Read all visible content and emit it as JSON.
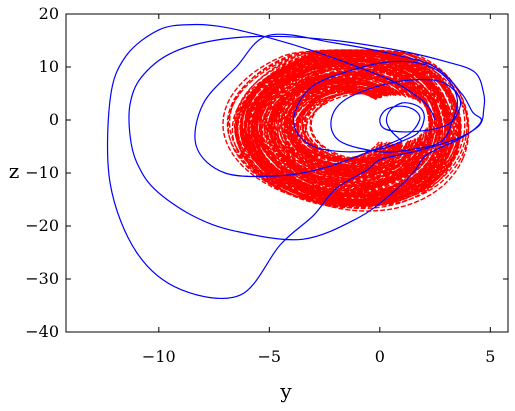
{
  "chart_data": {
    "type": "line",
    "title": "",
    "xlabel": "y",
    "ylabel": "z",
    "xlim": [
      -14.2,
      5.8
    ],
    "ylim": [
      -40,
      20
    ],
    "grid": false,
    "legend": "none",
    "xticks": [
      -10,
      -5,
      0,
      5
    ],
    "xtick_labels": [
      "−10",
      "−5",
      "0",
      "5"
    ],
    "yticks": [
      20,
      10,
      0,
      -10,
      -20,
      -30,
      -40
    ],
    "ytick_labels": [
      "20",
      "10",
      "0",
      "−10",
      "−20",
      "−30",
      "−40"
    ],
    "series": [
      {
        "style": "dashed",
        "color": "#ff0000",
        "cloud": {
          "center": [
            -1.5,
            -1.3
          ],
          "xspan": [
            -6.5,
            3.6
          ],
          "yspan": [
            -18.0,
            14.8
          ],
          "hole_center": [
            0.7,
            0.2
          ],
          "hole_radius": [
            1.2,
            3.5
          ]
        }
      },
      {
        "style": "solid",
        "color": "#0000ff",
        "points": [
          [
            1.0,
            -4.0
          ],
          [
            0.5,
            -2.0
          ],
          [
            0.3,
            0.0
          ],
          [
            0.5,
            2.0
          ],
          [
            1.0,
            3.2
          ],
          [
            1.5,
            3.0
          ],
          [
            1.9,
            2.0
          ],
          [
            2.0,
            0.0
          ],
          [
            1.7,
            -2.5
          ],
          [
            1.0,
            -4.0
          ],
          [
            0.0,
            -5.5
          ],
          [
            -1.5,
            -6.0
          ],
          [
            -3.0,
            -5.0
          ],
          [
            -3.8,
            -2.0
          ],
          [
            -3.8,
            2.0
          ],
          [
            -3.0,
            6.5
          ],
          [
            -1.2,
            9.5
          ],
          [
            0.5,
            11.0
          ],
          [
            2.0,
            10.5
          ],
          [
            3.0,
            8.0
          ],
          [
            3.5,
            4.0
          ],
          [
            3.3,
            0.0
          ],
          [
            2.8,
            -4.0
          ],
          [
            1.5,
            -5.5
          ],
          [
            0.0,
            -6.0
          ],
          [
            -1.8,
            -4.0
          ],
          [
            -2.2,
            0.0
          ],
          [
            -1.5,
            4.0
          ],
          [
            0.5,
            7.0
          ],
          [
            2.5,
            7.5
          ],
          [
            3.5,
            5.0
          ],
          [
            3.6,
            2.0
          ],
          [
            3.0,
            -1.0
          ],
          [
            1.5,
            -2.2
          ],
          [
            0.3,
            -1.8
          ],
          [
            0.0,
            0.0
          ],
          [
            0.3,
            2.0
          ],
          [
            1.0,
            2.6
          ],
          [
            1.6,
            1.8
          ],
          [
            1.8,
            0.0
          ],
          [
            1.2,
            -3.0
          ],
          [
            -0.5,
            -6.0
          ],
          [
            -2.5,
            -9.0
          ],
          [
            -4.5,
            -10.5
          ],
          [
            -7.0,
            -10.0
          ],
          [
            -8.3,
            -5.0
          ],
          [
            -8.0,
            3.0
          ],
          [
            -6.5,
            10.0
          ],
          [
            -5.0,
            16.0
          ],
          [
            -2.0,
            14.5
          ],
          [
            0.5,
            12.5
          ],
          [
            2.5,
            10.0
          ],
          [
            3.7,
            5.0
          ],
          [
            4.2,
            1.5
          ],
          [
            4.6,
            0.0
          ],
          [
            4.2,
            -2.0
          ],
          [
            3.4,
            -4.0
          ],
          [
            2.6,
            -5.5
          ],
          [
            2.0,
            -7.0
          ],
          [
            1.5,
            -10.0
          ],
          [
            0.5,
            -14.0
          ],
          [
            -1.0,
            -18.5
          ],
          [
            -3.5,
            -22.5
          ],
          [
            -6.5,
            -21.0
          ],
          [
            -8.5,
            -18.0
          ],
          [
            -10.2,
            -13.0
          ],
          [
            -11.0,
            -8.0
          ],
          [
            -11.3,
            -3.0
          ],
          [
            -11.3,
            3.0
          ],
          [
            -10.8,
            8.0
          ],
          [
            -9.5,
            12.5
          ],
          [
            -7.5,
            15.0
          ],
          [
            -5.0,
            15.8
          ],
          [
            -2.0,
            15.0
          ],
          [
            1.0,
            13.0
          ],
          [
            3.0,
            11.0
          ],
          [
            4.3,
            9.0
          ],
          [
            4.7,
            5.0
          ],
          [
            4.7,
            2.0
          ],
          [
            4.5,
            -1.0
          ],
          [
            3.5,
            -3.5
          ],
          [
            2.0,
            -5.5
          ],
          [
            1.0,
            -6.5
          ],
          [
            0.0,
            -7.5
          ],
          [
            -0.6,
            -9.5
          ],
          [
            -2.0,
            -13.0
          ],
          [
            -3.0,
            -18.0
          ],
          [
            -4.5,
            -23.5
          ],
          [
            -6.3,
            -33.0
          ],
          [
            -9.0,
            -32.0
          ],
          [
            -11.0,
            -25.0
          ],
          [
            -12.2,
            -12.0
          ],
          [
            -12.2,
            4.0
          ],
          [
            -11.5,
            12.0
          ],
          [
            -10.0,
            17.0
          ],
          [
            -8.5,
            18.0
          ],
          [
            -7.0,
            17.5
          ],
          [
            -5.0,
            15.5
          ],
          [
            -3.0,
            13.0
          ],
          [
            -1.0,
            10.0
          ],
          [
            0.5,
            7.5
          ],
          [
            1.5,
            5.0
          ],
          [
            2.2,
            2.5
          ],
          [
            2.5,
            0.0
          ]
        ]
      }
    ]
  }
}
